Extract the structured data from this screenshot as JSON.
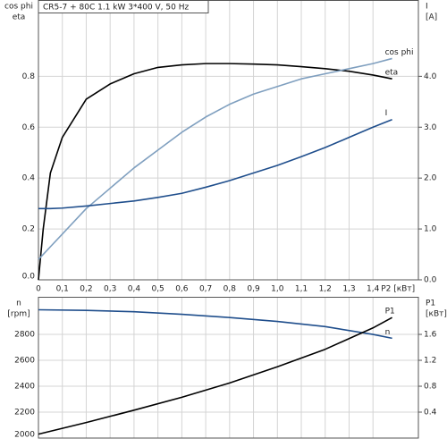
{
  "chart_data": [
    {
      "type": "line",
      "title": "CR5-7 + 80C   1.1 kW   3*400 V, 50 Hz",
      "ylabel": [
        "cos phi",
        "eta"
      ],
      "y2label": [
        "I",
        "[A]"
      ],
      "xlabel": "P2 [кВт]",
      "x": [
        0,
        0.02,
        0.05,
        0.1,
        0.2,
        0.3,
        0.4,
        0.5,
        0.6,
        0.7,
        0.8,
        0.9,
        1.0,
        1.1,
        1.2,
        1.3,
        1.4,
        1.48
      ],
      "xlim": [
        0,
        1.59
      ],
      "xticks": [
        0,
        {
          "value": 0.1,
          "label": "0,1"
        },
        {
          "value": 0.2,
          "label": "0,2"
        },
        {
          "value": 0.3,
          "label": "0,3"
        },
        {
          "value": 0.4,
          "label": "0,4"
        },
        {
          "value": 0.5,
          "label": "0,5"
        },
        {
          "value": 0.6,
          "label": "0,6"
        },
        {
          "value": 0.7,
          "label": "0,7"
        },
        {
          "value": 0.8,
          "label": "0,8"
        },
        {
          "value": 0.9,
          "label": "0,9"
        },
        {
          "value": 1.0,
          "label": "1,0"
        },
        {
          "value": 1.1,
          "label": "1,1"
        },
        {
          "value": 1.2,
          "label": "1,2"
        },
        {
          "value": 1.3,
          "label": "1,3"
        },
        {
          "value": 1.4,
          "label": "1,4"
        }
      ],
      "ylim": [
        0,
        1.1
      ],
      "yticks": [
        {
          "value": 0,
          "label": "0.0"
        },
        0.2,
        0.4,
        0.6,
        0.8
      ],
      "y2lim": [
        0,
        5.5
      ],
      "y2ticks": [
        {
          "value": 0,
          "label": "0.0"
        },
        {
          "value": 1,
          "label": "1.0"
        },
        {
          "value": 2,
          "label": "2.0"
        },
        {
          "value": 3,
          "label": "3.0"
        },
        {
          "value": 4,
          "label": "4.0"
        }
      ],
      "grid": true,
      "series": [
        {
          "name": "eta",
          "color": "#000000",
          "values": [
            0,
            0.2,
            0.42,
            0.56,
            0.71,
            0.77,
            0.81,
            0.835,
            0.845,
            0.85,
            0.85,
            0.848,
            0.845,
            0.838,
            0.83,
            0.82,
            0.805,
            0.79
          ]
        },
        {
          "name": "cos phi",
          "color": "#7f9fbf",
          "values": [
            0.08,
            0.1,
            0.13,
            0.18,
            0.28,
            0.36,
            0.44,
            0.51,
            0.58,
            0.64,
            0.69,
            0.73,
            0.76,
            0.79,
            0.81,
            0.83,
            0.85,
            0.87
          ]
        },
        {
          "name": "I",
          "color": "#1f4e8c",
          "axis": "y2",
          "values": [
            1.4,
            1.4,
            1.4,
            1.41,
            1.45,
            1.5,
            1.55,
            1.62,
            1.7,
            1.82,
            1.95,
            2.1,
            2.25,
            2.42,
            2.6,
            2.8,
            3.0,
            3.15
          ]
        }
      ]
    },
    {
      "type": "line",
      "ylabel": [
        "n",
        "[rpm]"
      ],
      "y2label": [
        "P1",
        "[кВт]"
      ],
      "x": [
        0,
        0.2,
        0.4,
        0.6,
        0.8,
        1.0,
        1.2,
        1.4,
        1.48
      ],
      "xlim": [
        0,
        1.59
      ],
      "xticks": [
        0,
        0.1,
        0.2,
        0.3,
        0.4,
        0.5,
        0.6,
        0.7,
        0.8,
        0.9,
        1.0,
        1.1,
        1.2,
        1.3,
        1.4
      ],
      "ylim": [
        2000,
        3090
      ],
      "yticks": [
        2000,
        2200,
        2400,
        2600,
        2800
      ],
      "y2lim": [
        0,
        2.18
      ],
      "y2ticks": [
        0.4,
        0.8,
        1.2,
        1.6
      ],
      "grid": true,
      "series": [
        {
          "name": "n",
          "color": "#1f4e8c",
          "values": [
            2990,
            2985,
            2975,
            2955,
            2930,
            2900,
            2860,
            2800,
            2770
          ]
        },
        {
          "name": "P1",
          "color": "#000000",
          "axis": "y2",
          "values": [
            0.06,
            0.24,
            0.43,
            0.63,
            0.85,
            1.1,
            1.37,
            1.7,
            1.86
          ]
        }
      ]
    }
  ]
}
